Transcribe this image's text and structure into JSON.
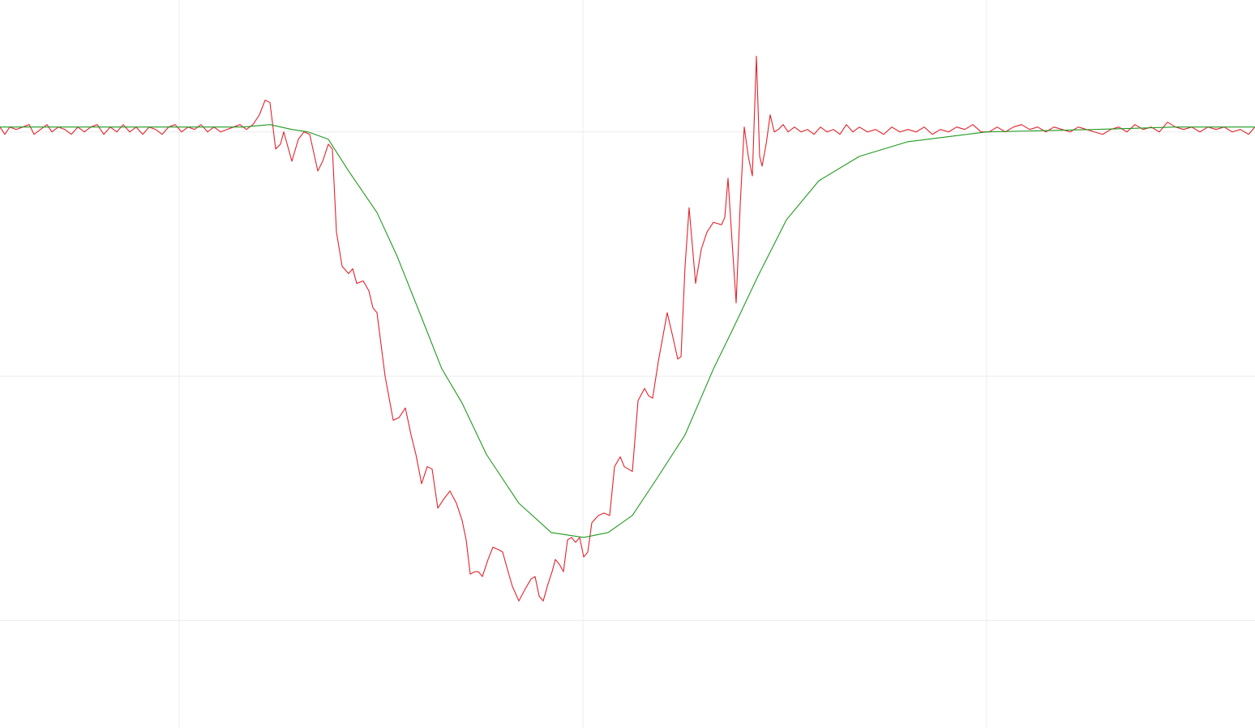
{
  "chart_data": {
    "type": "line",
    "xlim": [
      0,
      1548
    ],
    "xticks": [
      221,
      719,
      1217
    ],
    "ylim": [
      -44,
      254
    ],
    "yticks": [
      0,
      100,
      200
    ],
    "grid": true,
    "series": [
      {
        "color": "#e3232b",
        "x": [
          0,
          6,
          12,
          20,
          28,
          36,
          42,
          50,
          58,
          64,
          72,
          80,
          88,
          96,
          104,
          112,
          120,
          128,
          136,
          144,
          152,
          160,
          168,
          176,
          184,
          192,
          200,
          208,
          216,
          224,
          232,
          240,
          248,
          256,
          264,
          272,
          280,
          288,
          296,
          304,
          312,
          320,
          327,
          333,
          340,
          346,
          350,
          360,
          368,
          375,
          382,
          392,
          398,
          405,
          410,
          415,
          422,
          430,
          435,
          440,
          448,
          455,
          460,
          465,
          475,
          485,
          492,
          500,
          507,
          513,
          520,
          527,
          533,
          540,
          548,
          555,
          563,
          570,
          575,
          580,
          586,
          590,
          595,
          602,
          608,
          615,
          620,
          625,
          632,
          640,
          648,
          655,
          660,
          665,
          670,
          676,
          681,
          685,
          690,
          695,
          700,
          705,
          710,
          715,
          720,
          725,
          730,
          738,
          745,
          752,
          758,
          765,
          770,
          780,
          787,
          795,
          800,
          805,
          812,
          823,
          830,
          836,
          840,
          845,
          850,
          858,
          865,
          872,
          880,
          890,
          894,
          898,
          903,
          908,
          913,
          918,
          923,
          928,
          933,
          937,
          940,
          945,
          950,
          955,
          960,
          966,
          972,
          980,
          988,
          996,
          1004,
          1012,
          1020,
          1028,
          1036,
          1044,
          1052,
          1060,
          1070,
          1080,
          1090,
          1100,
          1110,
          1120,
          1130,
          1140,
          1150,
          1160,
          1170,
          1180,
          1190,
          1200,
          1210,
          1220,
          1230,
          1240,
          1250,
          1260,
          1270,
          1280,
          1290,
          1300,
          1310,
          1320,
          1330,
          1340,
          1350,
          1360,
          1370,
          1380,
          1390,
          1400,
          1410,
          1420,
          1430,
          1440,
          1450,
          1460,
          1470,
          1480,
          1490,
          1500,
          1510,
          1520,
          1530,
          1540,
          1548
        ],
        "values": [
          202,
          199,
          202,
          201,
          202,
          203,
          199,
          201,
          203,
          200,
          202,
          201,
          199,
          202,
          200,
          202,
          203,
          199,
          202,
          200,
          203,
          200,
          202,
          199,
          202,
          201,
          199,
          202,
          203,
          200,
          202,
          201,
          203,
          200,
          202,
          200,
          201,
          202,
          203,
          201,
          203,
          207,
          213,
          212,
          193,
          195,
          200,
          188,
          197,
          200,
          199,
          184,
          188,
          195,
          193,
          159,
          145,
          142,
          144,
          138,
          139,
          135,
          128,
          126,
          100,
          82,
          83,
          87,
          76,
          68,
          56,
          63,
          62,
          46,
          50,
          53,
          48,
          41,
          33,
          19,
          20,
          20,
          18,
          25,
          30,
          29,
          28,
          22,
          14,
          8,
          13,
          17,
          18,
          10,
          8,
          15,
          20,
          25,
          23,
          20,
          33,
          34,
          32,
          34,
          26,
          28,
          40,
          43,
          44,
          43,
          63,
          67,
          63,
          61,
          90,
          95,
          92,
          91,
          106,
          126,
          116,
          107,
          108,
          145,
          169,
          138,
          152,
          159,
          163,
          162,
          165,
          181,
          155,
          130,
          170,
          202,
          190,
          182,
          231,
          190,
          186,
          195,
          207,
          200,
          201,
          203,
          200,
          202,
          200,
          201,
          199,
          202,
          200,
          201,
          199,
          203,
          200,
          202,
          200,
          201,
          199,
          202,
          200,
          201,
          200,
          202,
          199,
          201,
          200,
          202,
          201,
          203,
          200,
          200,
          202,
          200,
          202,
          203,
          201,
          202,
          200,
          202,
          201,
          200,
          202,
          201,
          200,
          199,
          201,
          202,
          200,
          203,
          201,
          202,
          200,
          204,
          202,
          201,
          202,
          200,
          202,
          201,
          202,
          200,
          201,
          199,
          202
        ]
      },
      {
        "color": "#1f9a1f",
        "x": [
          0,
          60,
          120,
          180,
          240,
          300,
          333,
          360,
          380,
          405,
          430,
          465,
          490,
          520,
          545,
          570,
          600,
          640,
          680,
          720,
          750,
          780,
          810,
          845,
          880,
          905,
          935,
          970,
          1010,
          1060,
          1120,
          1217,
          1350,
          1450,
          1548
        ],
        "values": [
          202,
          202,
          202,
          202,
          202,
          202,
          203,
          201,
          200,
          197,
          184,
          167,
          149,
          124,
          103,
          89,
          68,
          48,
          36,
          34,
          36,
          43,
          58,
          76,
          103,
          120,
          141,
          164,
          180,
          190,
          196,
          200,
          201,
          202,
          202
        ]
      }
    ]
  }
}
